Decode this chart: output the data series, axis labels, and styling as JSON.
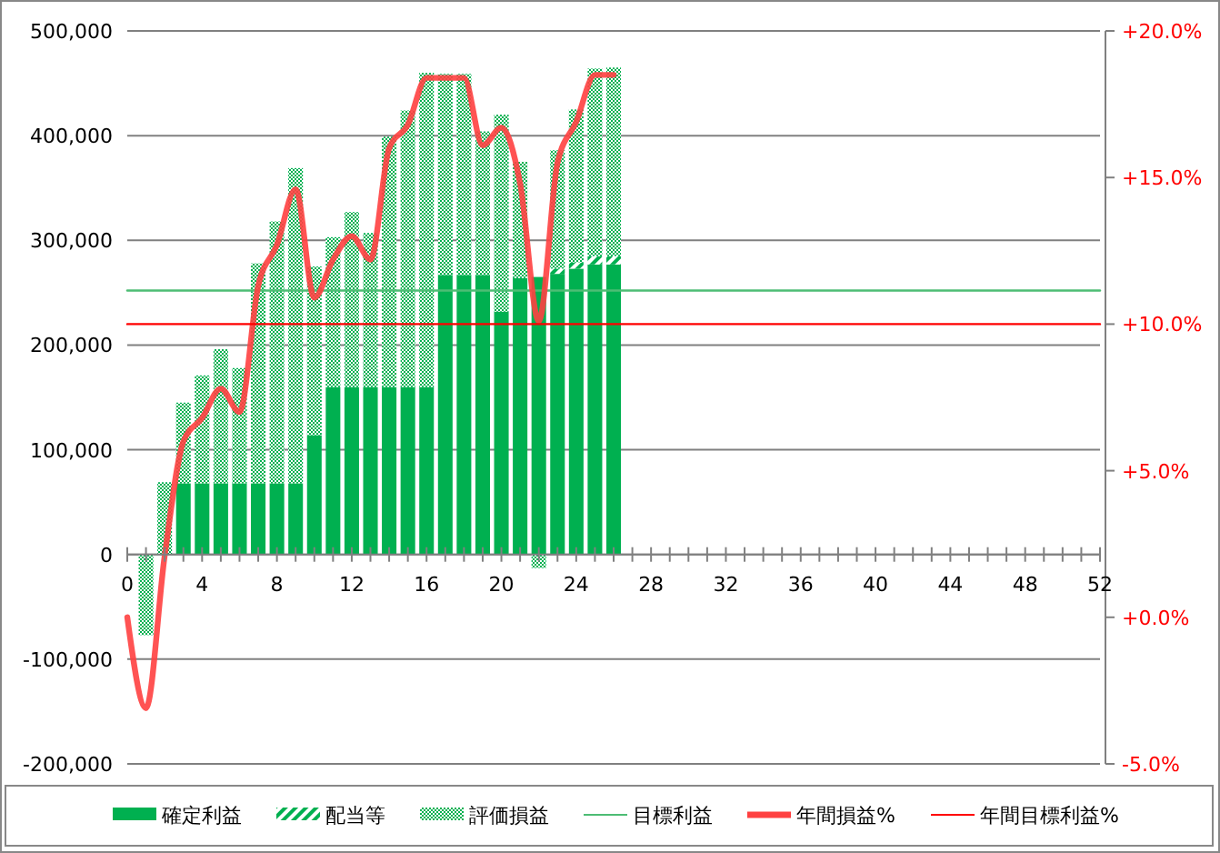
{
  "chart_data": {
    "type": "bar",
    "stacked": true,
    "x": [
      1,
      2,
      3,
      4,
      5,
      6,
      7,
      8,
      9,
      10,
      11,
      12,
      13,
      14,
      15,
      16,
      17,
      18,
      19,
      20,
      21,
      22,
      23,
      24,
      25,
      26
    ],
    "series": [
      {
        "name": "確定利益",
        "color": "#00b050",
        "values": [
          0,
          0,
          68000,
          68000,
          68000,
          68000,
          68000,
          68000,
          68000,
          114000,
          160000,
          160000,
          160000,
          160000,
          160000,
          160000,
          267000,
          267000,
          267000,
          232000,
          264000,
          265000,
          268000,
          273000,
          277000,
          277000
        ]
      },
      {
        "name": "配当等",
        "color": "#00b050",
        "values": [
          0,
          0,
          0,
          0,
          0,
          0,
          0,
          0,
          0,
          0,
          0,
          0,
          0,
          0,
          0,
          0,
          0,
          0,
          0,
          0,
          0,
          0,
          5000,
          6000,
          8000,
          8000
        ]
      },
      {
        "name": "評価損益",
        "color": "#00b050",
        "values": [
          -77000,
          69000,
          77000,
          103000,
          128000,
          110000,
          210000,
          250000,
          301000,
          161000,
          143000,
          167000,
          147000,
          239000,
          264000,
          300000,
          192000,
          192000,
          137000,
          188000,
          111000,
          -13000,
          113000,
          146000,
          179000,
          180000
        ]
      },
      {
        "name": "目標利益",
        "type": "line",
        "color": "#4dbd74",
        "x": [
          0,
          52
        ],
        "values": [
          252000,
          252000
        ]
      },
      {
        "name": "年間損益%",
        "type": "line",
        "axis": "y2",
        "color": "#ff4040",
        "x": [
          0,
          1,
          2,
          3,
          4,
          5,
          6,
          7,
          8,
          9,
          10,
          11,
          12,
          13,
          14,
          15,
          16,
          17,
          18,
          19,
          20,
          21,
          22,
          23,
          24,
          25,
          26
        ],
        "values": [
          0.0,
          -3.1,
          2.1,
          6.0,
          6.8,
          7.8,
          7.0,
          11.3,
          12.7,
          14.6,
          10.9,
          12.2,
          13.0,
          12.2,
          16.0,
          16.8,
          18.4,
          18.4,
          18.4,
          16.1,
          16.7,
          14.8,
          10.1,
          15.5,
          16.9,
          18.5,
          18.5
        ]
      },
      {
        "name": "年間目標利益%",
        "type": "line",
        "axis": "y2",
        "color": "#ff0000",
        "x": [
          0,
          52
        ],
        "values": [
          10,
          10
        ]
      }
    ],
    "xlim": [
      0,
      52
    ],
    "xticks": [
      0,
      {
        "value": 1,
        "label": null
      },
      {
        "value": 2,
        "label": null
      },
      {
        "value": 3,
        "label": null
      },
      4,
      {
        "value": 5,
        "label": null
      },
      {
        "value": 6,
        "label": null
      },
      {
        "value": 7,
        "label": null
      },
      8,
      {
        "value": 9,
        "label": null
      },
      {
        "value": 10,
        "label": null
      },
      {
        "value": 11,
        "label": null
      },
      12,
      {
        "value": 13,
        "label": null
      },
      {
        "value": 14,
        "label": null
      },
      {
        "value": 15,
        "label": null
      },
      16,
      {
        "value": 17,
        "label": null
      },
      {
        "value": 18,
        "label": null
      },
      {
        "value": 19,
        "label": null
      },
      20,
      {
        "value": 21,
        "label": null
      },
      {
        "value": 22,
        "label": null
      },
      {
        "value": 23,
        "label": null
      },
      24,
      {
        "value": 25,
        "label": null
      },
      {
        "value": 26,
        "label": null
      },
      {
        "value": 27,
        "label": null
      },
      28,
      {
        "value": 29,
        "label": null
      },
      {
        "value": 30,
        "label": null
      },
      {
        "value": 31,
        "label": null
      },
      32,
      {
        "value": 33,
        "label": null
      },
      {
        "value": 34,
        "label": null
      },
      {
        "value": 35,
        "label": null
      },
      36,
      {
        "value": 37,
        "label": null
      },
      {
        "value": 38,
        "label": null
      },
      {
        "value": 39,
        "label": null
      },
      40,
      {
        "value": 41,
        "label": null
      },
      {
        "value": 42,
        "label": null
      },
      {
        "value": 43,
        "label": null
      },
      44,
      {
        "value": 45,
        "label": null
      },
      {
        "value": 46,
        "label": null
      },
      {
        "value": 47,
        "label": null
      },
      48,
      {
        "value": 49,
        "label": null
      },
      {
        "value": 50,
        "label": null
      },
      {
        "value": 51,
        "label": null
      },
      52
    ],
    "ylim": [
      -200000,
      500000
    ],
    "yticks": [
      {
        "value": -200000,
        "label": "-200,000"
      },
      {
        "value": -100000,
        "label": "-100,000"
      },
      0,
      {
        "value": 100000,
        "label": "100,000"
      },
      {
        "value": 200000,
        "label": "200,000"
      },
      {
        "value": 300000,
        "label": "300,000"
      },
      {
        "value": 400000,
        "label": "400,000"
      },
      {
        "value": 500000,
        "label": "500,000"
      }
    ],
    "y2lim": [
      -5,
      20
    ],
    "y2ticks": [
      {
        "value": -5,
        "label": "-5.0%"
      },
      {
        "value": 0,
        "label": "+0.0%"
      },
      {
        "value": 5,
        "label": "+5.0%"
      },
      {
        "value": 10,
        "label": "+10.0%"
      },
      {
        "value": 15,
        "label": "+15.0%"
      },
      {
        "value": 20,
        "label": "+20.0%"
      }
    ],
    "grid": "y",
    "legend": "bottom",
    "line_style": "solid"
  }
}
